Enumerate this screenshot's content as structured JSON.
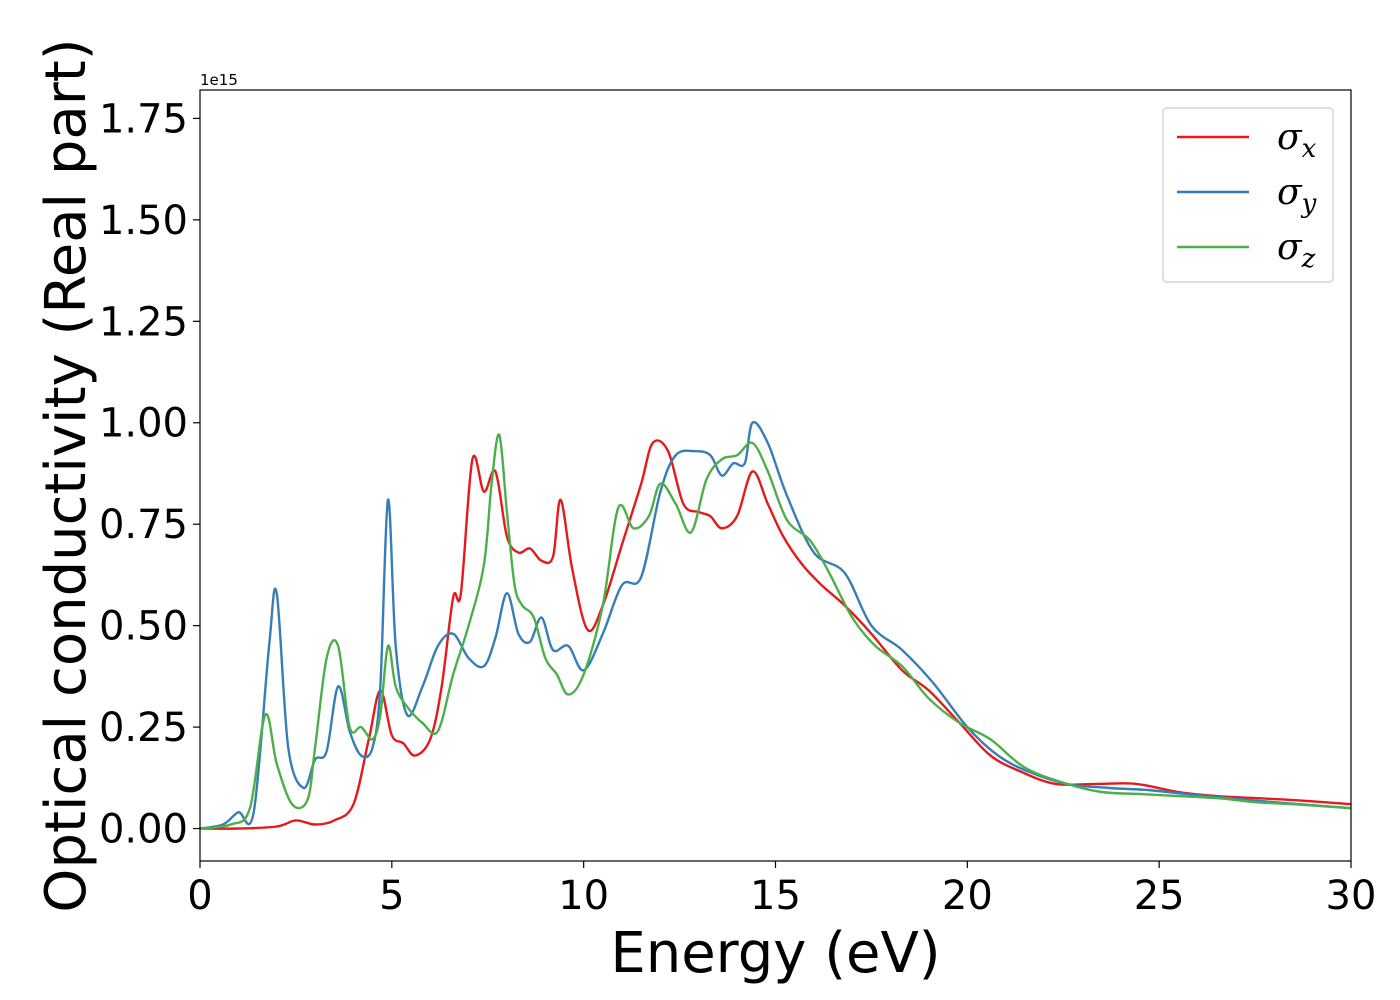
{
  "chart_data": {
    "type": "line",
    "xlabel": "Energy (eV)",
    "ylabel": "Optical conductivity (Real part)",
    "y_offset_label": "1e15",
    "y_multiplier": 1000000000000000.0,
    "xlim": [
      0,
      30
    ],
    "ylim": [
      -0.08,
      1.82
    ],
    "x_ticks": [
      0,
      5,
      10,
      15,
      20,
      25,
      30
    ],
    "x_tick_labels": [
      "0",
      "5",
      "10",
      "15",
      "20",
      "25",
      "30"
    ],
    "y_ticks": [
      0.0,
      0.25,
      0.5,
      0.75,
      1.0,
      1.25,
      1.5,
      1.75
    ],
    "y_tick_labels": [
      "0.00",
      "0.25",
      "0.50",
      "0.75",
      "1.00",
      "1.25",
      "1.50",
      "1.75"
    ],
    "grid": false,
    "legend_position": "top-right",
    "series": [
      {
        "name": "σx",
        "symbol": "σ",
        "subscript": "x",
        "color": "#e41a1c",
        "x": [
          0,
          1,
          2,
          2.5,
          3,
          3.5,
          4,
          4.4,
          4.7,
          5.0,
          5.3,
          5.6,
          6.0,
          6.3,
          6.6,
          6.8,
          7.1,
          7.4,
          7.7,
          8.0,
          8.3,
          8.6,
          8.9,
          9.2,
          9.4,
          9.7,
          10.1,
          10.5,
          11.0,
          11.5,
          11.8,
          12.2,
          12.6,
          13.0,
          13.3,
          13.6,
          14.0,
          14.4,
          14.8,
          15.2,
          15.7,
          16.2,
          16.8,
          17.5,
          18.3,
          19.0,
          19.8,
          20.6,
          21.4,
          22.3,
          23.4,
          24.4,
          25.5,
          26.5,
          27.5,
          28.5,
          30
        ],
        "y": [
          0,
          0,
          0.005,
          0.02,
          0.01,
          0.02,
          0.06,
          0.22,
          0.34,
          0.23,
          0.21,
          0.18,
          0.22,
          0.35,
          0.57,
          0.58,
          0.91,
          0.83,
          0.88,
          0.72,
          0.68,
          0.69,
          0.66,
          0.67,
          0.81,
          0.64,
          0.49,
          0.55,
          0.7,
          0.85,
          0.95,
          0.93,
          0.8,
          0.78,
          0.77,
          0.74,
          0.77,
          0.88,
          0.8,
          0.72,
          0.65,
          0.6,
          0.55,
          0.48,
          0.39,
          0.34,
          0.26,
          0.18,
          0.14,
          0.11,
          0.11,
          0.11,
          0.09,
          0.08,
          0.075,
          0.07,
          0.06
        ]
      },
      {
        "name": "σy",
        "symbol": "σ",
        "subscript": "y",
        "color": "#377eb8",
        "x": [
          0,
          0.6,
          1.0,
          1.4,
          1.8,
          2.0,
          2.3,
          2.7,
          3.0,
          3.3,
          3.6,
          3.9,
          4.2,
          4.5,
          4.7,
          4.9,
          5.1,
          5.4,
          5.8,
          6.2,
          6.6,
          7.0,
          7.4,
          7.7,
          8.0,
          8.3,
          8.6,
          8.9,
          9.2,
          9.6,
          10.0,
          10.5,
          11.0,
          11.5,
          12.0,
          12.4,
          12.9,
          13.3,
          13.6,
          13.9,
          14.2,
          14.4,
          14.8,
          15.3,
          16.0,
          16.8,
          17.5,
          18.3,
          19.1,
          20.0,
          20.8,
          21.6,
          22.6,
          23.7,
          24.7,
          25.7,
          26.8,
          28.0,
          30
        ],
        "y": [
          0,
          0.01,
          0.04,
          0.04,
          0.45,
          0.58,
          0.2,
          0.1,
          0.17,
          0.19,
          0.35,
          0.24,
          0.18,
          0.2,
          0.35,
          0.81,
          0.45,
          0.28,
          0.35,
          0.45,
          0.48,
          0.42,
          0.4,
          0.47,
          0.58,
          0.48,
          0.46,
          0.52,
          0.44,
          0.45,
          0.39,
          0.48,
          0.6,
          0.62,
          0.83,
          0.92,
          0.93,
          0.92,
          0.87,
          0.9,
          0.9,
          1.0,
          0.95,
          0.82,
          0.68,
          0.63,
          0.5,
          0.44,
          0.36,
          0.25,
          0.18,
          0.14,
          0.11,
          0.1,
          0.095,
          0.085,
          0.075,
          0.065,
          0.05
        ]
      },
      {
        "name": "σz",
        "symbol": "σ",
        "subscript": "z",
        "color": "#4daf4a",
        "x": [
          0,
          0.8,
          1.3,
          1.7,
          2.0,
          2.4,
          2.8,
          3.0,
          3.3,
          3.6,
          3.9,
          4.2,
          4.5,
          4.7,
          4.9,
          5.1,
          5.4,
          5.8,
          6.2,
          6.6,
          7.0,
          7.4,
          7.6,
          7.8,
          8.0,
          8.2,
          8.4,
          8.7,
          9.0,
          9.3,
          9.6,
          10.0,
          10.5,
          10.9,
          11.3,
          11.7,
          12.0,
          12.4,
          12.8,
          13.2,
          13.6,
          14.0,
          14.4,
          14.8,
          15.3,
          15.9,
          16.4,
          17.0,
          17.6,
          18.3,
          19.0,
          19.8,
          20.6,
          21.5,
          22.6,
          23.5,
          24.5,
          25.5,
          26.5,
          27.5,
          28.5,
          30
        ],
        "y": [
          0,
          0.01,
          0.05,
          0.28,
          0.16,
          0.06,
          0.07,
          0.2,
          0.42,
          0.45,
          0.25,
          0.25,
          0.22,
          0.28,
          0.45,
          0.35,
          0.3,
          0.26,
          0.24,
          0.38,
          0.5,
          0.65,
          0.85,
          0.97,
          0.78,
          0.6,
          0.55,
          0.52,
          0.42,
          0.38,
          0.33,
          0.38,
          0.55,
          0.79,
          0.74,
          0.77,
          0.85,
          0.8,
          0.73,
          0.86,
          0.91,
          0.92,
          0.95,
          0.88,
          0.76,
          0.71,
          0.63,
          0.52,
          0.45,
          0.4,
          0.32,
          0.26,
          0.22,
          0.15,
          0.11,
          0.09,
          0.085,
          0.08,
          0.075,
          0.065,
          0.06,
          0.05
        ]
      }
    ]
  }
}
